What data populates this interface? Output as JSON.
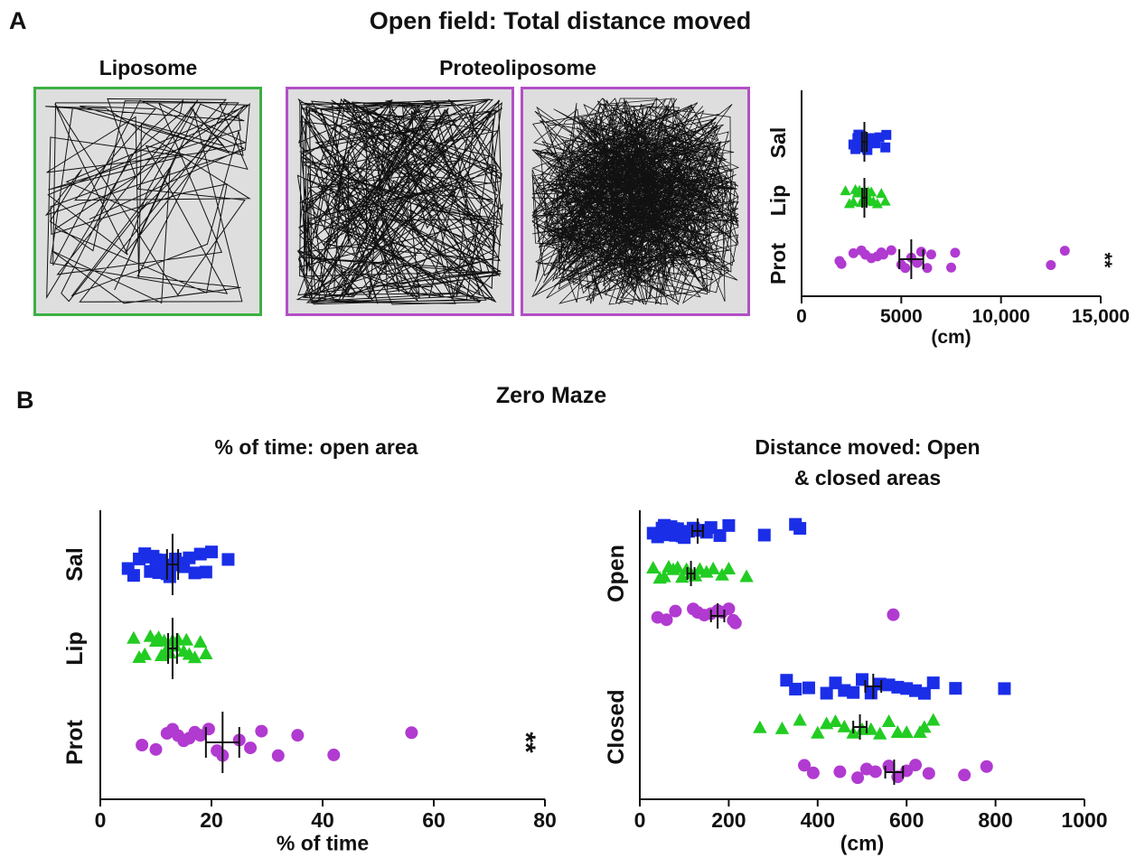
{
  "panel_a": {
    "letter": "A",
    "title": "Open field: Total distance moved",
    "track_labels": {
      "liposome": "Liposome",
      "proteoliposome": "Proteoliposome"
    },
    "colors": {
      "liposome_frame": "#3cb043",
      "proteoliposome_frame": "#b24fc7",
      "arena": "#dedede",
      "path": "#111111"
    }
  },
  "panel_b": {
    "letter": "B",
    "title": "Zero Maze",
    "left_title": "% of time: open area",
    "right_title_line1": "Distance moved: Open",
    "right_title_line2": "& closed areas"
  },
  "chart_data": [
    {
      "type": "scatter",
      "orientation": "horizontal",
      "title": "",
      "xlabel": "(cm)",
      "ylabel": "",
      "xlim": [
        0,
        15000
      ],
      "xticks": [
        0,
        5000,
        10000,
        15000
      ],
      "xtick_labels": [
        "0",
        "5000",
        "10,000",
        "15,000"
      ],
      "categories": [
        "Sal",
        "Lip",
        "Prot"
      ],
      "annotation": "**",
      "series": [
        {
          "name": "Sal",
          "color": "#1a2ee8",
          "marker": "square",
          "mean": 3150,
          "sem": 120,
          "values": [
            2600,
            2700,
            2800,
            2850,
            2900,
            2950,
            3000,
            3050,
            3100,
            3150,
            3200,
            3250,
            3300,
            3350,
            3400,
            3500,
            3600,
            3700,
            3900,
            4200,
            4250
          ]
        },
        {
          "name": "Lip",
          "color": "#22cc22",
          "marker": "triangle",
          "mean": 3150,
          "sem": 110,
          "values": [
            2200,
            2400,
            2600,
            2700,
            2800,
            2900,
            3000,
            3050,
            3100,
            3150,
            3200,
            3300,
            3350,
            3400,
            3500,
            3600,
            3800,
            4000,
            4200
          ]
        },
        {
          "name": "Prot",
          "color": "#b13ad1",
          "marker": "circle",
          "mean": 5500,
          "sem": 600,
          "values": [
            1900,
            2000,
            2600,
            3000,
            3200,
            3500,
            3800,
            4000,
            4100,
            4500,
            5000,
            5200,
            5500,
            5800,
            6000,
            6300,
            6500,
            7500,
            7700,
            12500,
            13200
          ]
        }
      ]
    },
    {
      "type": "scatter",
      "orientation": "horizontal",
      "title": "% of time: open area",
      "xlabel": "% of time",
      "ylabel": "",
      "xlim": [
        0,
        80
      ],
      "xticks": [
        0,
        20,
        40,
        60,
        80
      ],
      "xtick_labels": [
        "0",
        "20",
        "40",
        "60",
        "80"
      ],
      "categories": [
        "Sal",
        "Lip",
        "Prot"
      ],
      "annotation": "**",
      "series": [
        {
          "name": "Sal",
          "color": "#1a2ee8",
          "marker": "square",
          "mean": 13,
          "sem": 1,
          "values": [
            5,
            6,
            7,
            8,
            8.5,
            9,
            9.5,
            10,
            10.5,
            11,
            11.5,
            12,
            12.5,
            13,
            13.5,
            14,
            14.5,
            15,
            16,
            17,
            18,
            19,
            20,
            23
          ]
        },
        {
          "name": "Lip",
          "color": "#22cc22",
          "marker": "triangle",
          "mean": 13,
          "sem": 0.8,
          "values": [
            6,
            7,
            8,
            9,
            10,
            10.5,
            11,
            11.5,
            12,
            12.5,
            13,
            13.5,
            14,
            15,
            15.5,
            16,
            17,
            18,
            19
          ]
        },
        {
          "name": "Prot",
          "color": "#b13ad1",
          "marker": "circle",
          "mean": 22,
          "sem": 3,
          "values": [
            7.5,
            10,
            12,
            13,
            14,
            15,
            16,
            17,
            18,
            19.5,
            21,
            22,
            25,
            27,
            29,
            32,
            35.5,
            42,
            56
          ]
        }
      ]
    },
    {
      "type": "scatter",
      "orientation": "horizontal",
      "title": "Distance moved: Open & closed areas",
      "xlabel": "(cm)",
      "ylabel": "",
      "xlim": [
        0,
        1000
      ],
      "xticks": [
        0,
        200,
        400,
        600,
        800,
        1000
      ],
      "xtick_labels": [
        "0",
        "200",
        "400",
        "600",
        "800",
        "1000"
      ],
      "categories": [
        "Open",
        "Closed"
      ],
      "series": [
        {
          "name": "Open Sal",
          "color": "#1a2ee8",
          "marker": "square",
          "mean": 130,
          "sem": 12,
          "values": [
            30,
            40,
            50,
            55,
            60,
            65,
            70,
            75,
            80,
            85,
            90,
            95,
            100,
            110,
            120,
            130,
            140,
            150,
            160,
            180,
            200,
            280,
            350,
            360
          ]
        },
        {
          "name": "Open Lip",
          "color": "#22cc22",
          "marker": "triangle",
          "mean": 115,
          "sem": 8,
          "values": [
            30,
            45,
            55,
            65,
            75,
            85,
            95,
            105,
            115,
            125,
            135,
            150,
            165,
            185,
            200,
            240
          ]
        },
        {
          "name": "Open Prot",
          "color": "#b13ad1",
          "marker": "circle",
          "mean": 175,
          "sem": 15,
          "values": [
            40,
            60,
            80,
            120,
            130,
            145,
            160,
            175,
            185,
            200,
            210,
            215,
            570
          ]
        },
        {
          "name": "Closed Sal",
          "color": "#1a2ee8",
          "marker": "square",
          "mean": 525,
          "sem": 18,
          "values": [
            330,
            350,
            380,
            420,
            440,
            460,
            480,
            500,
            520,
            540,
            560,
            580,
            600,
            620,
            640,
            660,
            710,
            820
          ]
        },
        {
          "name": "Closed Lip",
          "color": "#22cc22",
          "marker": "triangle",
          "mean": 495,
          "sem": 15,
          "values": [
            270,
            320,
            360,
            400,
            420,
            440,
            460,
            480,
            500,
            520,
            540,
            560,
            580,
            600,
            630,
            640,
            660
          ]
        },
        {
          "name": "Closed Prot",
          "color": "#b13ad1",
          "marker": "circle",
          "mean": 572,
          "sem": 20,
          "values": [
            370,
            390,
            450,
            490,
            510,
            530,
            560,
            580,
            600,
            620,
            650,
            730,
            780
          ]
        }
      ]
    }
  ]
}
